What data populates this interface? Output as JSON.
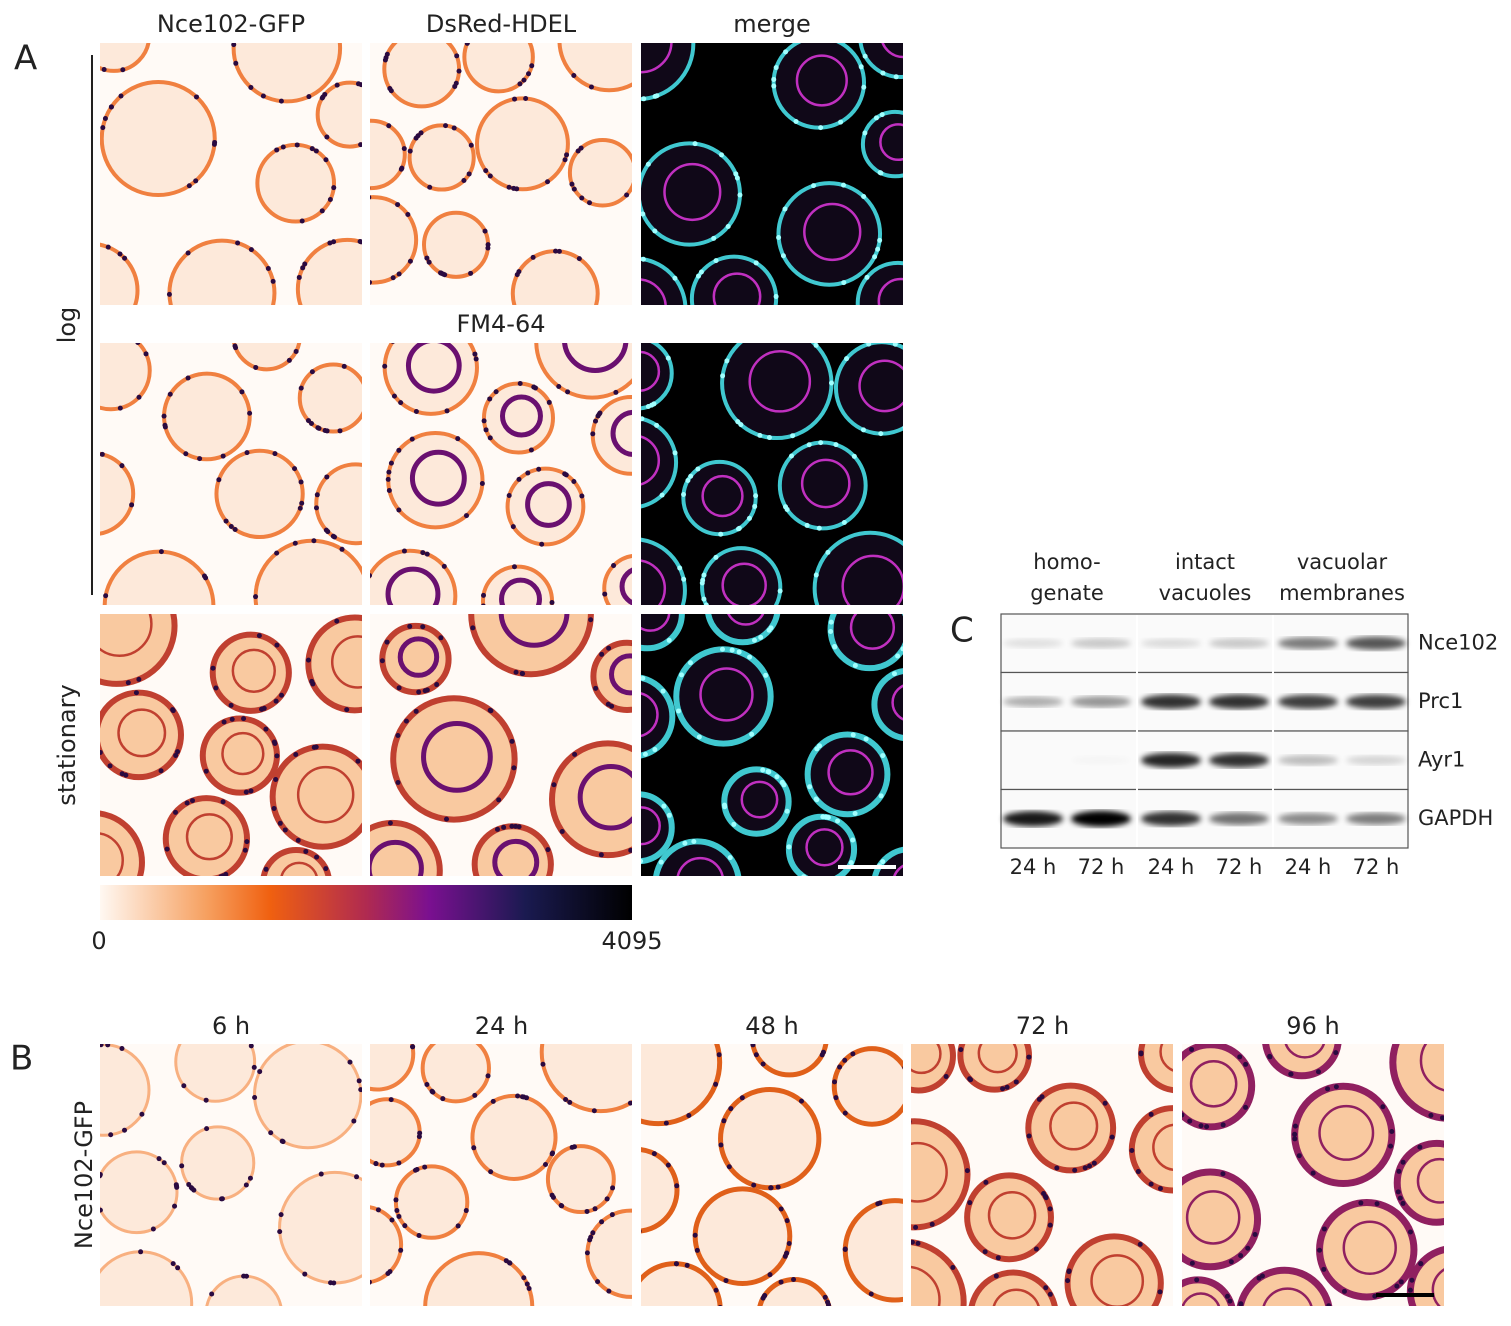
{
  "panel_a": {
    "label": "A",
    "columns": [
      "Nce102-GFP",
      "DsRed-HDEL",
      "merge"
    ],
    "second_header": "FM4-64",
    "rows": [
      "log",
      "stationary"
    ],
    "colorbar": {
      "min": 0,
      "max": 4095
    }
  },
  "panel_b": {
    "label": "B",
    "row_label": "Nce102-GFP",
    "timepoints": [
      "6 h",
      "24 h",
      "48 h",
      "72 h",
      "96 h"
    ]
  },
  "panel_c": {
    "label": "C",
    "groups": [
      [
        "homo-",
        "genate"
      ],
      [
        "intact",
        "vacuoles"
      ],
      [
        "vacuolar",
        "membranes"
      ]
    ],
    "proteins": [
      "Nce102",
      "Prc1",
      "Ayr1",
      "GAPDH"
    ],
    "lanes": [
      "24 h",
      "72 h",
      "24 h",
      "72 h",
      "24 h",
      "72 h"
    ]
  }
}
